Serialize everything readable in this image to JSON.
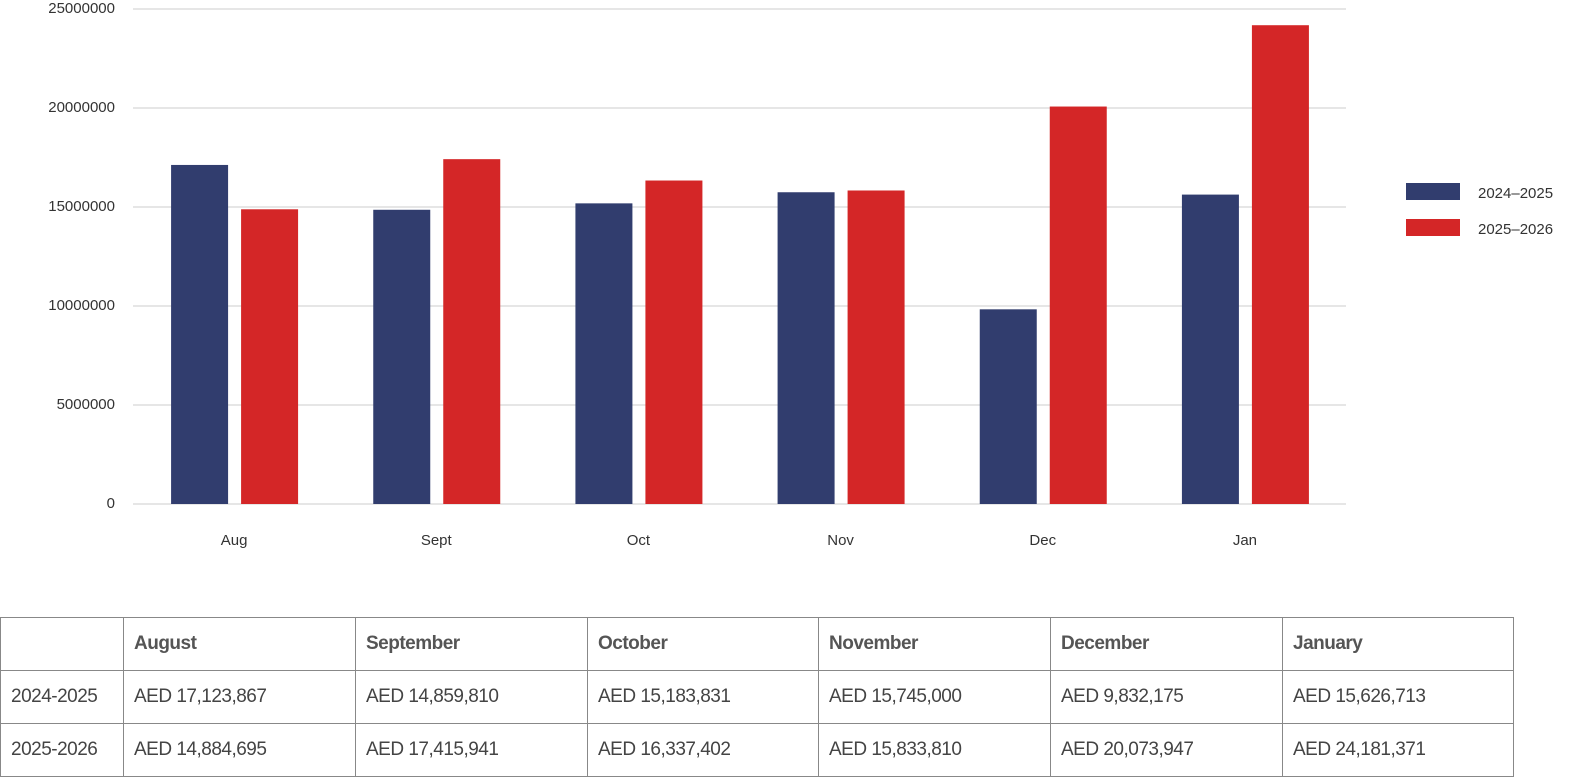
{
  "chart_data": {
    "type": "bar",
    "categories": [
      "Aug",
      "Sept",
      "Oct",
      "Nov",
      "Dec",
      "Jan"
    ],
    "series": [
      {
        "name": "2024–2025",
        "color": "#313d6e",
        "values": [
          17123867,
          14859810,
          15183831,
          15745000,
          9832175,
          15626713
        ]
      },
      {
        "name": "2025–2026",
        "color": "#d42627",
        "values": [
          14884695,
          17415941,
          16337402,
          15833810,
          20073947,
          24181371
        ]
      }
    ],
    "ylim": [
      0,
      25000000
    ],
    "yticks": [
      0,
      5000000,
      10000000,
      15000000,
      20000000,
      25000000
    ],
    "grid": true,
    "legend": "right"
  },
  "table": {
    "header": [
      "August",
      "September",
      "October",
      "November",
      "December",
      "January"
    ],
    "rows": [
      [
        "2024-2025",
        "AED 17,123,867",
        "AED 14,859,810",
        "AED 15,183,831",
        "AED 15,745,000",
        "AED 9,832,175",
        "AED 15,626,713"
      ],
      [
        "2025-2026",
        "AED 14,884,695",
        "AED 17,415,941",
        "AED 16,337,402",
        "AED 15,833,810",
        "AED 20,073,947",
        "AED 24,181,371"
      ]
    ]
  }
}
